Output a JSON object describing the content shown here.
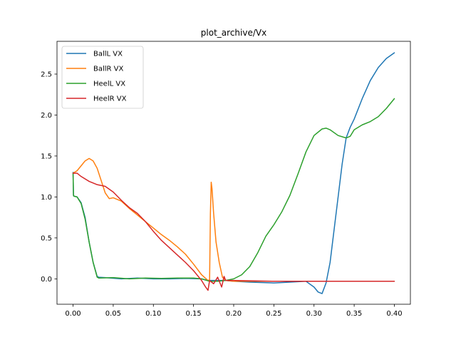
{
  "chart_data": {
    "type": "line",
    "title": "plot_archive/Vx",
    "xlabel": "",
    "ylabel": "",
    "xlim": [
      -0.02,
      0.42
    ],
    "ylim": [
      -0.31,
      2.9
    ],
    "xticks": [
      0.0,
      0.05,
      0.1,
      0.15,
      0.2,
      0.25,
      0.3,
      0.35,
      0.4
    ],
    "xtick_labels": [
      "0.00",
      "0.05",
      "0.10",
      "0.15",
      "0.20",
      "0.25",
      "0.30",
      "0.35",
      "0.40"
    ],
    "yticks": [
      0.0,
      0.5,
      1.0,
      1.5,
      2.0,
      2.5
    ],
    "ytick_labels": [
      "0.0",
      "0.5",
      "1.0",
      "1.5",
      "2.0",
      "2.5"
    ],
    "grid": false,
    "legend_position": "top-left",
    "series": [
      {
        "name": "BallL VX",
        "color": "#1f77b4",
        "x": [
          0.0,
          0.0005,
          0.001,
          0.005,
          0.01,
          0.015,
          0.02,
          0.025,
          0.03,
          0.032,
          0.04,
          0.06,
          0.08,
          0.1,
          0.12,
          0.14,
          0.16,
          0.168,
          0.17,
          0.18,
          0.19,
          0.2,
          0.22,
          0.25,
          0.27,
          0.29,
          0.3,
          0.305,
          0.31,
          0.315,
          0.32,
          0.325,
          0.33,
          0.335,
          0.34,
          0.345,
          0.35,
          0.36,
          0.37,
          0.38,
          0.39,
          0.4
        ],
        "y": [
          1.3,
          1.02,
          1.01,
          1.0,
          0.93,
          0.75,
          0.45,
          0.2,
          0.03,
          0.02,
          0.015,
          0.0,
          0.01,
          0.0,
          0.0,
          0.005,
          0.0,
          -0.02,
          -0.02,
          -0.02,
          -0.02,
          -0.03,
          -0.04,
          -0.05,
          -0.04,
          -0.03,
          -0.1,
          -0.16,
          -0.18,
          -0.05,
          0.2,
          0.6,
          1.0,
          1.4,
          1.72,
          1.85,
          1.95,
          2.2,
          2.42,
          2.58,
          2.69,
          2.76
        ]
      },
      {
        "name": "BallR VX",
        "color": "#ff7f0e",
        "x": [
          0.0,
          0.005,
          0.01,
          0.015,
          0.02,
          0.025,
          0.03,
          0.035,
          0.04,
          0.045,
          0.05,
          0.06,
          0.07,
          0.08,
          0.09,
          0.1,
          0.11,
          0.12,
          0.13,
          0.14,
          0.15,
          0.16,
          0.168,
          0.17,
          0.171,
          0.172,
          0.173,
          0.175,
          0.178,
          0.182,
          0.186,
          0.19,
          0.2,
          0.25,
          0.3,
          0.35,
          0.4
        ],
        "y": [
          1.29,
          1.32,
          1.38,
          1.44,
          1.47,
          1.44,
          1.35,
          1.2,
          1.05,
          0.98,
          0.99,
          0.95,
          0.86,
          0.78,
          0.7,
          0.62,
          0.54,
          0.47,
          0.39,
          0.3,
          0.18,
          0.05,
          -0.02,
          -0.01,
          0.8,
          1.18,
          1.1,
          0.8,
          0.45,
          0.2,
          0.02,
          -0.02,
          -0.03,
          -0.03,
          -0.03,
          -0.03,
          -0.03
        ]
      },
      {
        "name": "HeelL VX",
        "color": "#2ca02c",
        "x": [
          0.0,
          0.0005,
          0.001,
          0.005,
          0.01,
          0.015,
          0.02,
          0.025,
          0.03,
          0.032,
          0.05,
          0.07,
          0.09,
          0.11,
          0.13,
          0.15,
          0.16,
          0.17,
          0.18,
          0.19,
          0.2,
          0.21,
          0.22,
          0.23,
          0.24,
          0.25,
          0.26,
          0.27,
          0.28,
          0.29,
          0.3,
          0.31,
          0.315,
          0.32,
          0.33,
          0.34,
          0.345,
          0.35,
          0.36,
          0.37,
          0.38,
          0.39,
          0.4
        ],
        "y": [
          1.29,
          1.02,
          1.01,
          1.0,
          0.92,
          0.73,
          0.45,
          0.2,
          0.02,
          0.01,
          0.015,
          0.0,
          0.01,
          0.005,
          0.01,
          0.01,
          0.0,
          -0.03,
          -0.03,
          -0.02,
          0.0,
          0.05,
          0.15,
          0.32,
          0.52,
          0.66,
          0.82,
          1.02,
          1.28,
          1.55,
          1.75,
          1.83,
          1.84,
          1.82,
          1.75,
          1.72,
          1.74,
          1.82,
          1.88,
          1.92,
          1.98,
          2.08,
          2.2
        ]
      },
      {
        "name": "HeelR VX",
        "color": "#d62728",
        "x": [
          0.0,
          0.005,
          0.01,
          0.02,
          0.03,
          0.04,
          0.05,
          0.06,
          0.07,
          0.08,
          0.09,
          0.1,
          0.11,
          0.12,
          0.13,
          0.14,
          0.15,
          0.16,
          0.165,
          0.168,
          0.17,
          0.175,
          0.18,
          0.185,
          0.188,
          0.19,
          0.2,
          0.25,
          0.3,
          0.35,
          0.4
        ],
        "y": [
          1.29,
          1.29,
          1.25,
          1.19,
          1.15,
          1.13,
          1.06,
          0.96,
          0.87,
          0.8,
          0.7,
          0.58,
          0.47,
          0.38,
          0.29,
          0.2,
          0.1,
          -0.02,
          -0.1,
          -0.14,
          -0.02,
          -0.06,
          0.02,
          -0.1,
          0.03,
          -0.02,
          -0.02,
          -0.03,
          -0.03,
          -0.03,
          -0.03
        ]
      }
    ]
  }
}
